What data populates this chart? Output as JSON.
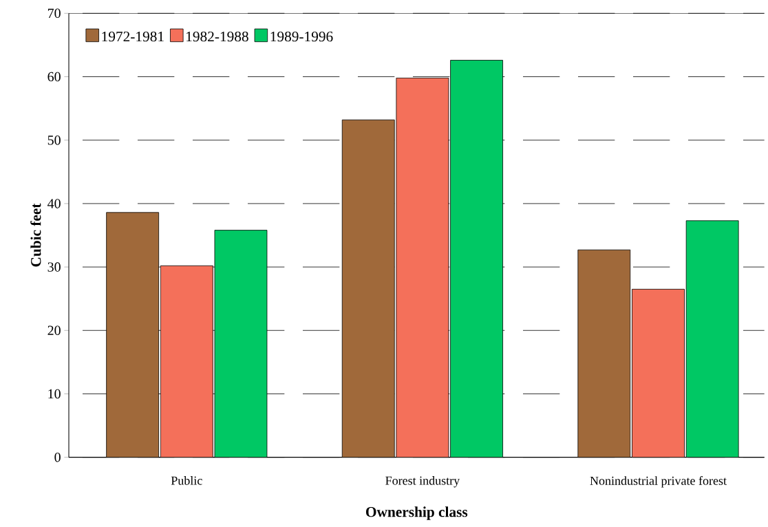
{
  "chart_data": {
    "type": "bar",
    "xlabel": "Ownership class",
    "ylabel": "Cubic feet",
    "categories": [
      "Public",
      "Forest industry",
      "Nonindustrial private forest"
    ],
    "series": [
      {
        "name": "1972-1981",
        "color": "#a0693a",
        "values": [
          38.6,
          53.2,
          32.7
        ]
      },
      {
        "name": "1982-1988",
        "color": "#f4705a",
        "values": [
          30.2,
          59.8,
          26.5
        ]
      },
      {
        "name": "1989-1996",
        "color": "#00c864",
        "values": [
          35.8,
          62.6,
          37.3
        ]
      }
    ],
    "ylim": [
      0,
      70
    ],
    "yticks": [
      0,
      10,
      20,
      30,
      40,
      50,
      60,
      70
    ],
    "grid": "y",
    "legend": "top left"
  }
}
